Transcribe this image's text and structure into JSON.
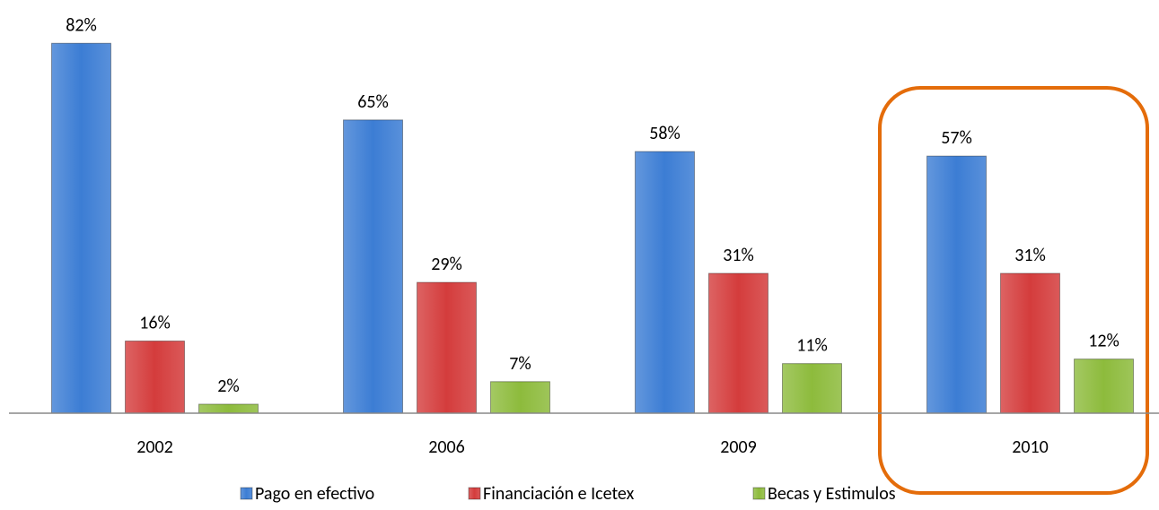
{
  "chart_data": {
    "type": "bar",
    "categories": [
      "2002",
      "2006",
      "2009",
      "2010"
    ],
    "series": [
      {
        "name": "Pago en efectivo",
        "color": "#3c7dd4",
        "values": [
          82,
          65,
          58,
          57
        ],
        "value_labels": [
          "82%",
          "65%",
          "58%",
          "57%"
        ]
      },
      {
        "name": "Financiación e Icetex",
        "color": "#d43c3c",
        "values": [
          16,
          29,
          31,
          31
        ],
        "value_labels": [
          "16%",
          "29%",
          "31%",
          "31%"
        ]
      },
      {
        "name": "Becas y Estimulos",
        "color": "#8dbb3c",
        "values": [
          2,
          7,
          11,
          12
        ],
        "value_labels": [
          "2%",
          "7%",
          "11%",
          "12%"
        ]
      }
    ],
    "ylim": [
      0,
      90
    ],
    "legend": "bottom"
  }
}
